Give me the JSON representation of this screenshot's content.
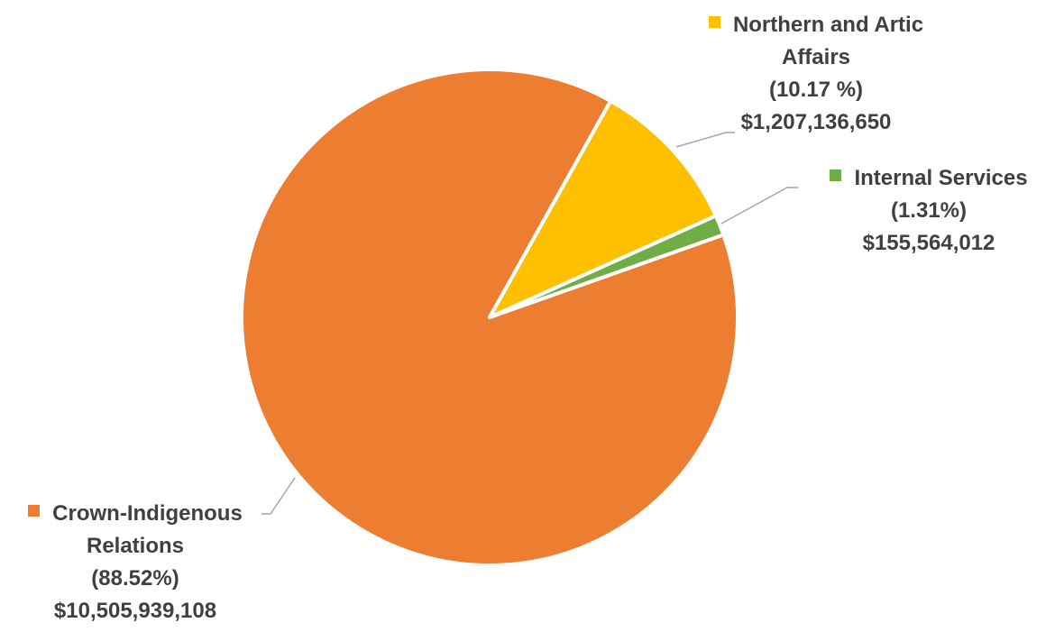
{
  "chart_data": {
    "type": "pie",
    "categories": [
      "Northern and Artic Affairs",
      "Internal Services",
      "Crown-Indigenous Relations"
    ],
    "values": [
      10.17,
      1.31,
      88.52
    ],
    "value_labels": [
      "(10.17 %)",
      "(1.31%)",
      "(88.52%)"
    ],
    "amounts": [
      1207136650,
      155564012,
      10505939108
    ],
    "amount_labels": [
      "$1,207,136,650",
      "$155,564,012",
      "$10,505,939,108"
    ],
    "colors": [
      "#ffc000",
      "#70ad47",
      "#ed7d31"
    ]
  }
}
